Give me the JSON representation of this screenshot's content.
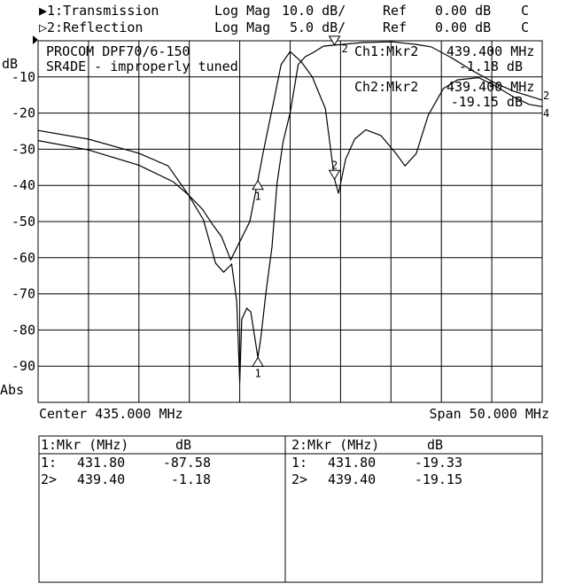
{
  "header": {
    "ch1": {
      "label": "▶1:Transmission",
      "format": "Log Mag",
      "scale": "10.0 dB/",
      "ref_label": "Ref",
      "ref_value": "0.00 dB",
      "flag": "C"
    },
    "ch2": {
      "label": "▷2:Reflection",
      "format": "Log Mag",
      "scale": "5.0 dB/",
      "ref_label": "Ref",
      "ref_value": "0.00 dB",
      "flag": "C"
    }
  },
  "annotations": {
    "title_line1": "PROCOM DPF70/6-150",
    "title_line2": "SR4DE - improperly tuned",
    "ch1_marker_label": "Ch1:Mkr2",
    "ch1_marker_freq": "439.400 MHz",
    "ch1_marker_value": "-1.18 dB",
    "ch2_marker_label": "Ch2:Mkr2",
    "ch2_marker_freq": "439.400 MHz",
    "ch2_marker_value": "-19.15 dB",
    "right_edge_marks": [
      "2",
      "4"
    ]
  },
  "footer": {
    "center": "Center 435.000 MHz",
    "span": "Span 50.000 MHz"
  },
  "marker_table": {
    "ch1": {
      "header_mkr": "1:Mkr (MHz)",
      "header_db": "dB",
      "rows": [
        {
          "id": "1:",
          "freq": "431.80",
          "db": "-87.58"
        },
        {
          "id": "2>",
          "freq": "439.40",
          "db": "-1.18"
        }
      ]
    },
    "ch2": {
      "header_mkr": "2:Mkr (MHz)",
      "header_db": "dB",
      "rows": [
        {
          "id": "1:",
          "freq": "431.80",
          "db": "-19.33"
        },
        {
          "id": "2>",
          "freq": "439.40",
          "db": "-19.15"
        }
      ]
    }
  },
  "chart_data": {
    "type": "line",
    "xlabel": "",
    "ylabel": "dB",
    "ylabel_bottom": "Abs",
    "xlim": [
      410,
      460
    ],
    "ylim": [
      -100,
      0
    ],
    "y_ticks": [
      "-10",
      "-20",
      "-30",
      "-40",
      "-50",
      "-60",
      "-70",
      "-80",
      "-90"
    ],
    "y_tick_values": [
      -10,
      -20,
      -30,
      -40,
      -50,
      -60,
      -70,
      -80,
      -90
    ],
    "grid": true,
    "x_divisions": 10,
    "y_divisions": 10,
    "series": [
      {
        "name": "1:Transmission",
        "ylim": [
          -100,
          0
        ],
        "x": [
          410.0,
          415.0,
          420.0,
          422.9,
          424.9,
          426.4,
          427.6,
          428.4,
          429.2,
          429.7,
          430.0,
          430.2,
          430.7,
          431.1,
          431.8,
          432.1,
          432.6,
          433.2,
          433.7,
          434.3,
          435.0,
          435.8,
          436.5,
          437.2,
          438.3,
          439.4,
          442.2,
          445.1,
          447.5,
          449.0,
          451.0,
          453.1,
          455.4,
          457.2,
          460.0
        ],
        "y": [
          -24.8,
          -27.2,
          -31.1,
          -34.6,
          -42.6,
          -49.5,
          -61.5,
          -64.0,
          -61.8,
          -72,
          -94.5,
          -77,
          -74,
          -75,
          -87.6,
          -82,
          -69.6,
          -57,
          -39.5,
          -28,
          -19.9,
          -6.6,
          -4.4,
          -3.4,
          -1.5,
          -1.2,
          -0.5,
          -0.3,
          -1.0,
          -1.7,
          -4.7,
          -8.3,
          -11.8,
          -14.0,
          -16.4
        ]
      },
      {
        "name": "2:Reflection",
        "ylim": [
          -50,
          0
        ],
        "x": [
          410.0,
          415.0,
          420.0,
          423.4,
          424.9,
          426.3,
          427.3,
          428.2,
          429.1,
          430.0,
          431.0,
          431.8,
          432.3,
          433.5,
          434.1,
          435.0,
          436.1,
          437.2,
          438.5,
          439.0,
          439.4,
          439.8,
          440.5,
          441.4,
          442.5,
          444.0,
          445.5,
          446.4,
          447.5,
          448.7,
          450.2,
          451.6,
          453.7,
          455.4,
          457.2,
          458.7,
          460.0
        ],
        "y": [
          -13.8,
          -15.1,
          -17.2,
          -19.5,
          -21.3,
          -23.3,
          -25.4,
          -27.1,
          -30.3,
          -27.8,
          -25.0,
          -19.3,
          -15.6,
          -7.5,
          -3.3,
          -1.5,
          -2.9,
          -5.0,
          -9.4,
          -14.8,
          -19.15,
          -21.1,
          -16.4,
          -13.6,
          -12.3,
          -13.1,
          -15.6,
          -17.3,
          -15.6,
          -10.3,
          -6.6,
          -5.4,
          -5.1,
          -6.3,
          -7.8,
          -8.8,
          -9.1
        ]
      }
    ],
    "markers": [
      {
        "channel": 1,
        "id": "1",
        "x": 431.8,
        "y": -87.58,
        "direction": "up"
      },
      {
        "channel": 1,
        "id": "2",
        "x": 439.4,
        "y": -1.18,
        "direction": "down"
      },
      {
        "channel": 2,
        "id": "1",
        "x": 431.8,
        "y": -19.33,
        "direction": "up"
      },
      {
        "channel": 2,
        "id": "2",
        "x": 439.4,
        "y": -19.15,
        "direction": "down"
      }
    ]
  }
}
